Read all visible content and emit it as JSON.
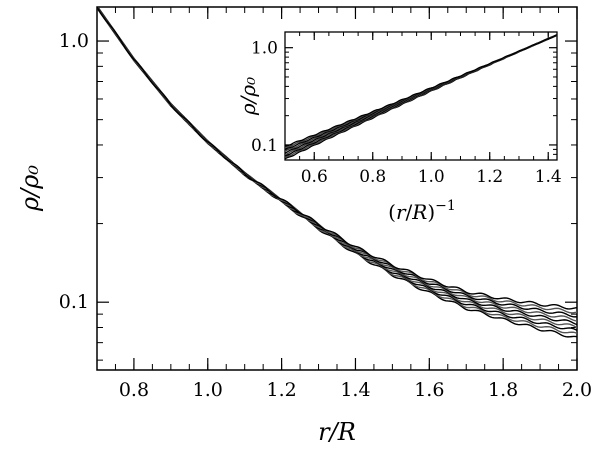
{
  "chart_data": [
    {
      "panel": "main",
      "type": "line",
      "xlabel": "r/R",
      "ylabel": "ρ/ρ₀",
      "xlim": [
        0.7,
        2.0
      ],
      "ylim": [
        0.055,
        1.35
      ],
      "y_scale": "log",
      "grid": false,
      "x_ticks": [
        0.8,
        1.0,
        1.2,
        1.4,
        1.6,
        1.8,
        2.0
      ],
      "x_tick_labels": [
        "0.8",
        "1.0",
        "1.2",
        "1.4",
        "1.6",
        "1.8",
        "2.0"
      ],
      "y_ticks": [
        0.1,
        1.0
      ],
      "y_tick_labels": [
        "0.1",
        "1.0"
      ],
      "curve_bundle": {
        "member_count": 9,
        "color": "#000000",
        "description_of_spread_exponent": [
          3.4,
          3.9
        ],
        "x": [
          0.7,
          0.8,
          0.9,
          1.0,
          1.1,
          1.2,
          1.3,
          1.4,
          1.5,
          1.6,
          1.7,
          1.8,
          1.9,
          2.0
        ],
        "y_center": [
          1.35,
          0.85,
          0.57,
          0.41,
          0.31,
          0.245,
          0.195,
          0.158,
          0.133,
          0.115,
          0.102,
          0.094,
          0.088,
          0.083
        ]
      }
    },
    {
      "panel": "inset",
      "type": "line",
      "xlabel": "(r/R)⁻¹",
      "ylabel": "ρ/ρ₀",
      "xlim": [
        0.5,
        1.43
      ],
      "ylim": [
        0.07,
        1.45
      ],
      "y_scale": "log",
      "grid": false,
      "x_ticks": [
        0.6,
        0.8,
        1.0,
        1.2,
        1.4
      ],
      "x_tick_labels": [
        "0.6",
        "0.8",
        "1.0",
        "1.2",
        "1.4"
      ],
      "y_ticks": [
        0.1,
        1.0
      ],
      "y_tick_labels": [
        "0.1",
        "1.0"
      ],
      "curve_bundle": {
        "member_count": 9,
        "color": "#000000",
        "x": [
          0.5,
          1.43
        ],
        "y_center": [
          0.083,
          1.35
        ]
      }
    }
  ]
}
